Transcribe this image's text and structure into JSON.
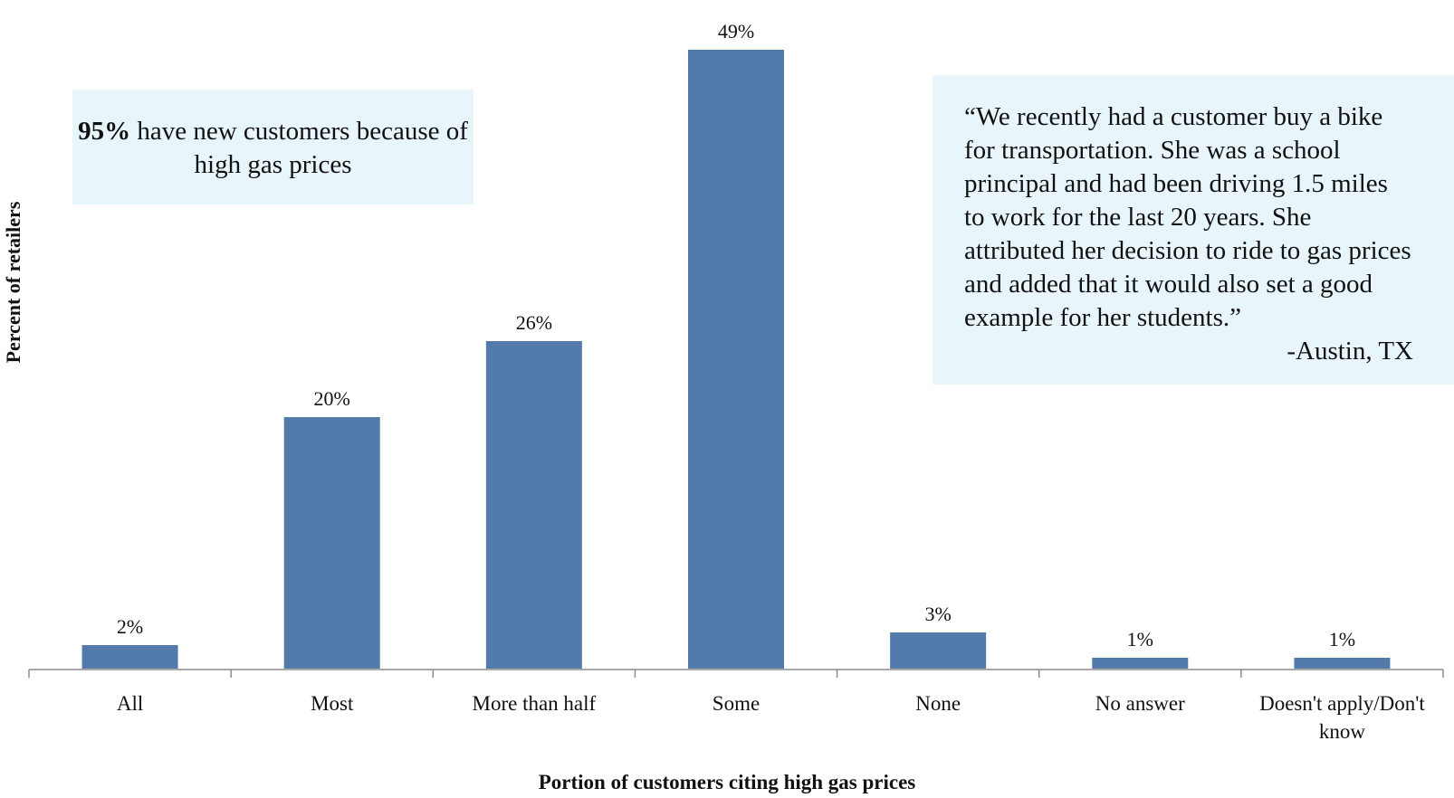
{
  "chart_data": {
    "type": "bar",
    "categories": [
      "All",
      "Most",
      "More than half",
      "Some",
      "None",
      "No answer",
      "Doesn't apply/Don't know"
    ],
    "values": [
      2,
      20,
      26,
      49,
      3,
      1,
      1
    ],
    "data_labels": [
      "2%",
      "20%",
      "26%",
      "49%",
      "3%",
      "1%",
      "1%"
    ],
    "xlabel": "Portion of customers citing high gas prices",
    "ylabel": "Percent of retailers",
    "ylim": [
      0,
      50
    ],
    "grid": false,
    "bar_color": "#527bab"
  },
  "callouts": {
    "left": {
      "stat": "95%",
      "text": " have new customers because of high gas prices"
    },
    "right": {
      "quote": "“We recently had a customer buy a bike\nfor transportation. She was a school\nprincipal and had been driving 1.5 miles\nto work for the last 20 years. She\nattributed her decision to ride to gas prices\nand added that it would also set a good\nexample for her students.”",
      "attribution": "-Austin, TX"
    }
  }
}
